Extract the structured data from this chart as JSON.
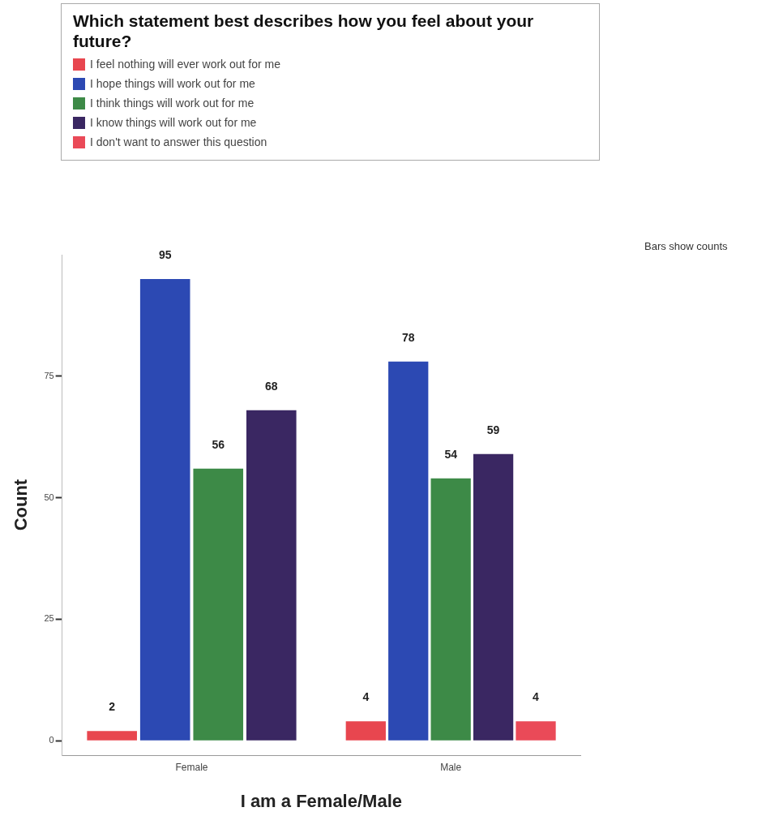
{
  "chart_data": {
    "type": "bar",
    "legend_title": "Which statement best describes how you feel about your future?",
    "xlabel": "I am a Female/Male",
    "ylabel": "Count",
    "categories": [
      "Female",
      "Male"
    ],
    "series": [
      {
        "name": "I feel nothing will ever work out for me",
        "color": "#e8464f",
        "values": [
          2,
          4
        ]
      },
      {
        "name": "I hope things will work out for me",
        "color": "#2c49b3",
        "values": [
          95,
          78
        ]
      },
      {
        "name": "I think things will work out for me",
        "color": "#3d8a47",
        "values": [
          56,
          54
        ]
      },
      {
        "name": "I know things will work out for me",
        "color": "#3a2762",
        "values": [
          68,
          59
        ]
      },
      {
        "name": "I don't want to answer this question",
        "color": "#ea4a58",
        "values": [
          null,
          4
        ]
      }
    ],
    "ylim": [
      -3,
      100
    ],
    "yticks": [
      0,
      25,
      50,
      75
    ],
    "data_labels": true,
    "legend": "top",
    "grid": false,
    "annotations": [
      "Bars show counts"
    ]
  }
}
